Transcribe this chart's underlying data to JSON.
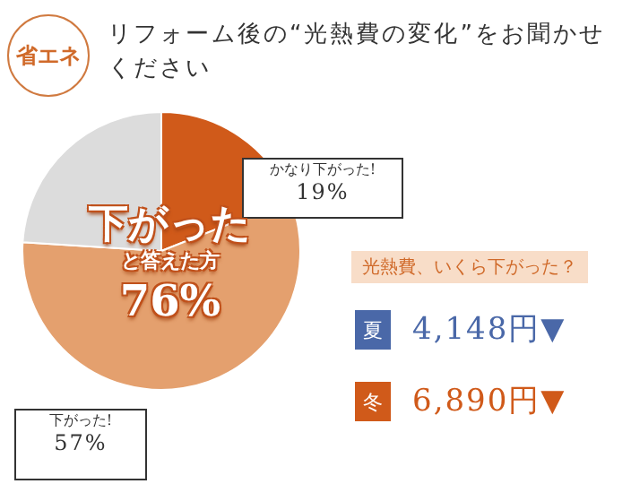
{
  "chart_data": {
    "type": "pie",
    "title": "リフォーム後の“光熱費の変化”をお聞かせください",
    "categories": [
      "かなり下がった!",
      "下がった!",
      null
    ],
    "values": [
      19,
      57,
      24
    ],
    "colors": [
      "#d05a1a",
      "#e4a06e",
      "#dcdcdc"
    ],
    "value_labels": [
      "19%",
      "57%",
      null
    ],
    "legend": false,
    "annotations": [
      "省エネ",
      "下がった",
      "と答えた方",
      "76%",
      "光熱費、いくら下がった？",
      "夏",
      "4,148円▼",
      "冬",
      "6,890円▼"
    ]
  }
}
